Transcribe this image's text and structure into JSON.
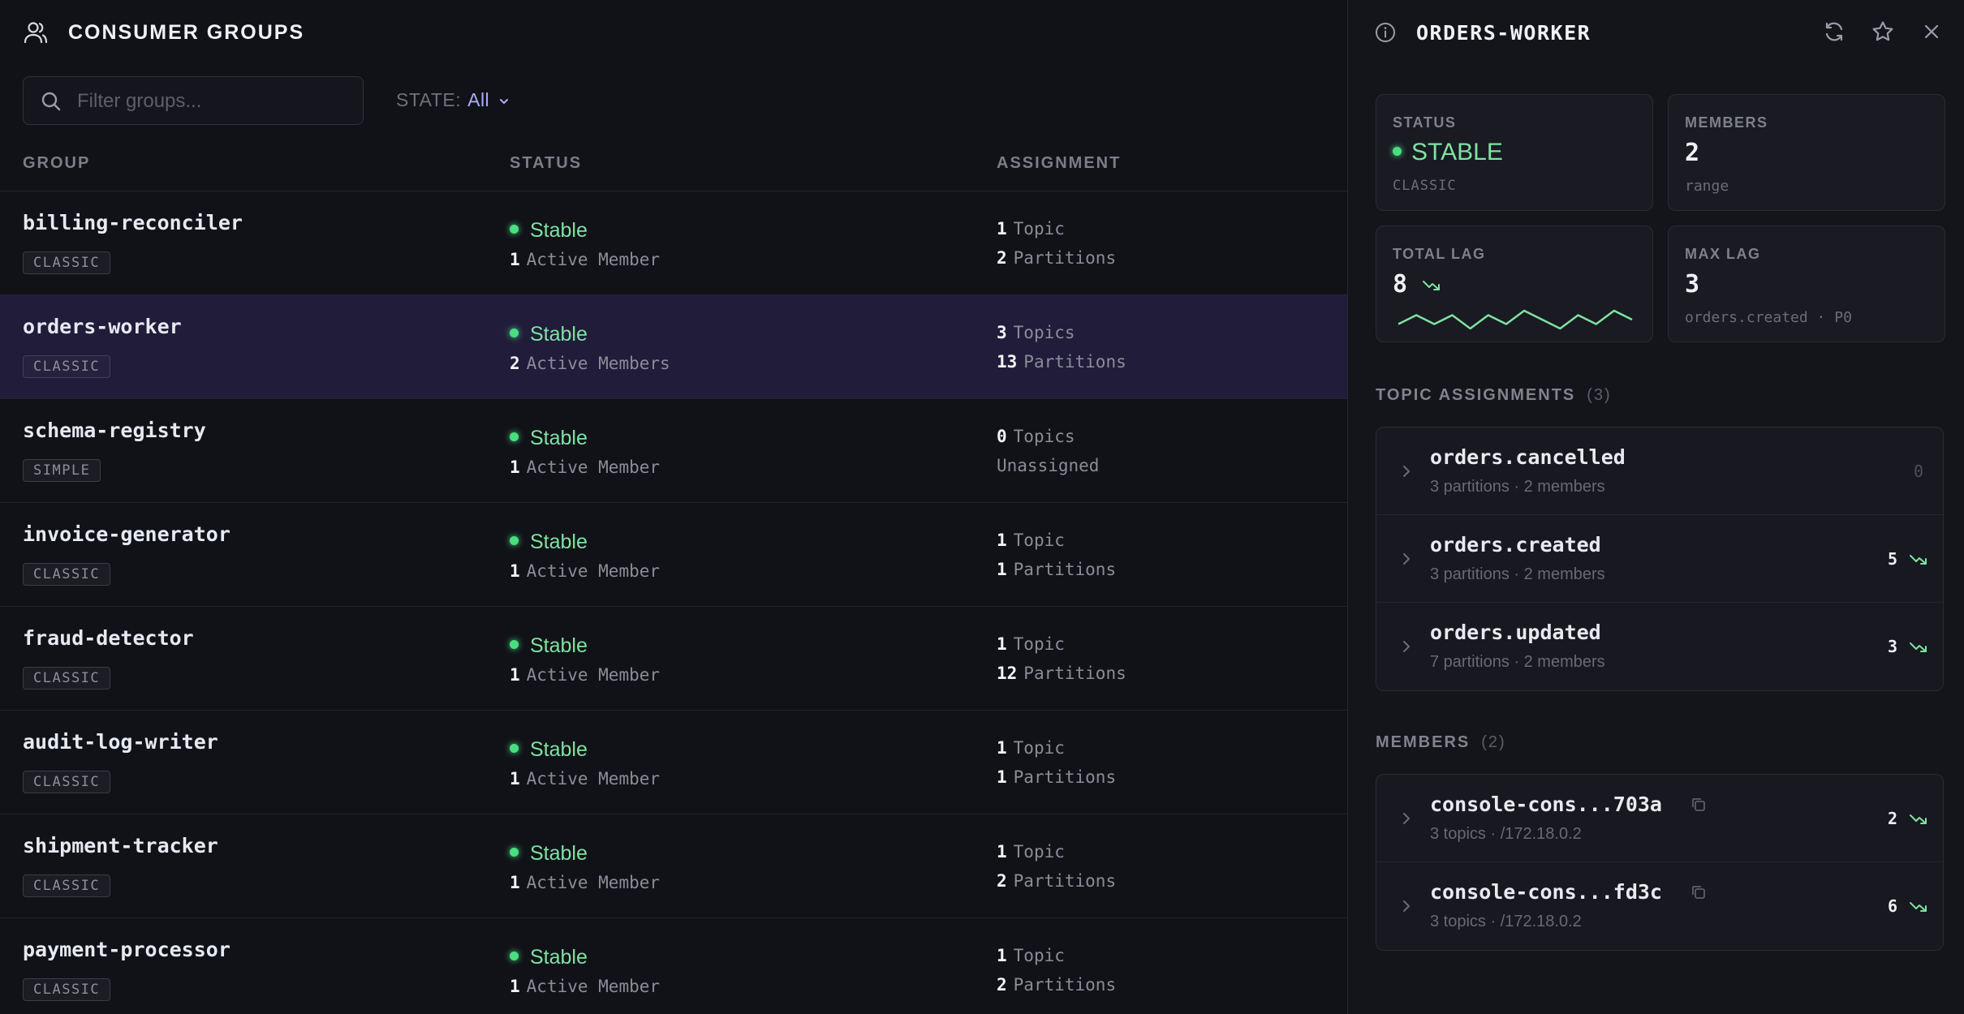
{
  "header": {
    "title": "CONSUMER GROUPS",
    "icon": "users-icon"
  },
  "search": {
    "placeholder": "Filter groups..."
  },
  "filter": {
    "label": "STATE:",
    "value": "All"
  },
  "columns": {
    "group": "GROUP",
    "status": "STATUS",
    "assignment": "ASSIGNMENT"
  },
  "groups": [
    {
      "name": "billing-reconciler",
      "badge": "CLASSIC",
      "status": "Stable",
      "members_n": "1",
      "members_label": "Active Member",
      "topics_n": "1",
      "topics_label": "Topic",
      "parts_n": "2",
      "parts_label": "Partitions"
    },
    {
      "name": "orders-worker",
      "badge": "CLASSIC",
      "status": "Stable",
      "members_n": "2",
      "members_label": "Active Members",
      "topics_n": "3",
      "topics_label": "Topics",
      "parts_n": "13",
      "parts_label": "Partitions",
      "selected": true
    },
    {
      "name": "schema-registry",
      "badge": "SIMPLE",
      "status": "Stable",
      "members_n": "1",
      "members_label": "Active Member",
      "topics_n": "0",
      "topics_label": "Topics",
      "parts_n": "",
      "parts_label": "Unassigned"
    },
    {
      "name": "invoice-generator",
      "badge": "CLASSIC",
      "status": "Stable",
      "members_n": "1",
      "members_label": "Active Member",
      "topics_n": "1",
      "topics_label": "Topic",
      "parts_n": "1",
      "parts_label": "Partitions"
    },
    {
      "name": "fraud-detector",
      "badge": "CLASSIC",
      "status": "Stable",
      "members_n": "1",
      "members_label": "Active Member",
      "topics_n": "1",
      "topics_label": "Topic",
      "parts_n": "12",
      "parts_label": "Partitions"
    },
    {
      "name": "audit-log-writer",
      "badge": "CLASSIC",
      "status": "Stable",
      "members_n": "1",
      "members_label": "Active Member",
      "topics_n": "1",
      "topics_label": "Topic",
      "parts_n": "1",
      "parts_label": "Partitions"
    },
    {
      "name": "shipment-tracker",
      "badge": "CLASSIC",
      "status": "Stable",
      "members_n": "1",
      "members_label": "Active Member",
      "topics_n": "1",
      "topics_label": "Topic",
      "parts_n": "2",
      "parts_label": "Partitions"
    },
    {
      "name": "payment-processor",
      "badge": "CLASSIC",
      "status": "Stable",
      "members_n": "1",
      "members_label": "Active Member",
      "topics_n": "1",
      "topics_label": "Topic",
      "parts_n": "2",
      "parts_label": "Partitions"
    }
  ],
  "detail": {
    "title": "ORDERS-WORKER",
    "status": {
      "label": "STATUS",
      "value": "STABLE",
      "sub": "CLASSIC"
    },
    "members": {
      "label": "MEMBERS",
      "value": "2",
      "sub": "range"
    },
    "total_lag": {
      "label": "TOTAL LAG",
      "value": "8",
      "spark": [
        3,
        5,
        3,
        5,
        2,
        5,
        3,
        6,
        4,
        2,
        5,
        3,
        6,
        4
      ]
    },
    "max_lag": {
      "label": "MAX LAG",
      "value": "3",
      "sub": "orders.created · P0"
    },
    "topics_section": {
      "label": "TOPIC ASSIGNMENTS",
      "count": "(3)"
    },
    "topics": [
      {
        "name": "orders.cancelled",
        "sub": "3 partitions · 2 members",
        "lag": "0"
      },
      {
        "name": "orders.created",
        "sub": "3 partitions · 2 members",
        "lag": "5"
      },
      {
        "name": "orders.updated",
        "sub": "7 partitions · 2 members",
        "lag": "3"
      }
    ],
    "members_section": {
      "label": "MEMBERS",
      "count": "(2)"
    },
    "member_list": [
      {
        "name": "console-cons...703a",
        "sub": "3 topics · /172.18.0.2",
        "lag": "2"
      },
      {
        "name": "console-cons...fd3c",
        "sub": "3 topics · /172.18.0.2",
        "lag": "6"
      }
    ]
  },
  "colors": {
    "accent": "#a9aef5",
    "stable": "#4ade80",
    "selected_row": "#211c3a"
  }
}
